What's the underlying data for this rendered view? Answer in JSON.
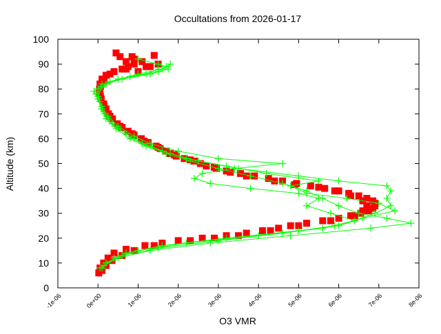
{
  "chart_data": {
    "type": "scatter",
    "title": "Occultations from 2026-01-17",
    "xlabel": "O3 VMR",
    "ylabel": "Altitude (km)",
    "xlim": [
      -1e-06,
      8e-06
    ],
    "ylim": [
      0,
      100
    ],
    "xticks": [
      -1e-06,
      0,
      1e-06,
      2e-06,
      3e-06,
      4e-06,
      5e-06,
      6e-06,
      7e-06,
      8e-06
    ],
    "xtick_labels": [
      "-1e-06",
      "0e+00",
      "1e-06",
      "2e-06",
      "3e-06",
      "4e-06",
      "5e-06",
      "6e-06",
      "7e-06",
      "8e-06"
    ],
    "yticks": [
      0,
      10,
      20,
      30,
      40,
      50,
      60,
      70,
      80,
      90,
      100
    ],
    "ytick_labels": [
      "0",
      "10",
      "20",
      "30",
      "40",
      "50",
      "60",
      "70",
      "80",
      "90",
      "100"
    ],
    "grid": false,
    "legend": "none",
    "point_format": "[O3 VMR, altitude km]",
    "series": [
      {
        "color": "#ff0000",
        "marker": "square",
        "lines": false,
        "points": [
          [
            2e-08,
            6
          ],
          [
            5e-08,
            8
          ],
          [
            1.4e-07,
            10
          ],
          [
            2.5e-07,
            12
          ],
          [
            4e-07,
            14
          ],
          [
            7e-07,
            15.5
          ],
          [
            1.17e-06,
            17
          ],
          [
            1.6e-06,
            18
          ],
          [
            2e-06,
            19
          ],
          [
            2.6e-06,
            20
          ],
          [
            3.2e-06,
            21
          ],
          [
            3.7e-06,
            22
          ],
          [
            4.1e-06,
            23
          ],
          [
            4.5e-06,
            24
          ],
          [
            4.8e-06,
            25
          ],
          [
            5.2e-06,
            26
          ],
          [
            5.6e-06,
            27
          ],
          [
            6e-06,
            28
          ],
          [
            6.3e-06,
            29
          ],
          [
            6.55e-06,
            30
          ],
          [
            6.75e-06,
            31
          ],
          [
            6.85e-06,
            32
          ],
          [
            6.9e-06,
            33
          ],
          [
            6.9e-06,
            34
          ],
          [
            6.85e-06,
            35
          ],
          [
            6.7e-06,
            36
          ],
          [
            6.5e-06,
            37
          ],
          [
            6.25e-06,
            38
          ],
          [
            6e-06,
            39
          ],
          [
            5.65e-06,
            40
          ],
          [
            5.3e-06,
            41
          ],
          [
            4.95e-06,
            42
          ],
          [
            4.6e-06,
            43
          ],
          [
            4.25e-06,
            44
          ],
          [
            3.9e-06,
            45
          ],
          [
            3.55e-06,
            46
          ],
          [
            3.2e-06,
            47
          ],
          [
            2.95e-06,
            48
          ],
          [
            2.7e-06,
            49
          ],
          [
            2.55e-06,
            50
          ],
          [
            2.4e-06,
            51
          ],
          [
            2.15e-06,
            52
          ],
          [
            1.95e-06,
            53
          ],
          [
            1.8e-06,
            54
          ],
          [
            1.7e-06,
            55
          ],
          [
            1.55e-06,
            56
          ],
          [
            1.45e-06,
            57
          ],
          [
            1.25e-06,
            58.5
          ],
          [
            1.08e-06,
            60
          ],
          [
            9e-07,
            61.5
          ],
          [
            7.5e-07,
            63
          ],
          [
            6e-07,
            64.5
          ],
          [
            4.8e-07,
            66
          ],
          [
            3.6e-07,
            68
          ],
          [
            2.6e-07,
            70
          ],
          [
            2e-07,
            72
          ],
          [
            1.4e-07,
            74
          ],
          [
            8e-08,
            76
          ],
          [
            5e-08,
            78
          ],
          [
            4e-08,
            80
          ],
          [
            5e-08,
            82
          ],
          [
            1e-07,
            84
          ],
          [
            2e-07,
            85.5
          ],
          [
            4e-07,
            87
          ],
          [
            6e-07,
            88
          ],
          [
            7.5e-07,
            89
          ],
          [
            9e-07,
            90
          ],
          [
            1.1e-06,
            91
          ],
          [
            9e-07,
            92
          ],
          [
            5.5e-07,
            93
          ],
          [
            4.5e-07,
            94.5
          ],
          [
            1.4e-06,
            93.5
          ],
          [
            1.2e-06,
            89
          ],
          [
            1e-06,
            87
          ]
        ]
      },
      {
        "color": "#ff0000",
        "marker": "square",
        "lines": false,
        "points": [
          [
            1e-07,
            7
          ],
          [
            2e-07,
            9
          ],
          [
            3.5e-07,
            11
          ],
          [
            6e-07,
            13
          ],
          [
            9e-07,
            15
          ],
          [
            1.4e-06,
            17
          ],
          [
            2.3e-06,
            19
          ],
          [
            2.9e-06,
            20
          ],
          [
            3.5e-06,
            21
          ],
          [
            4.3e-06,
            23
          ],
          [
            5e-06,
            25
          ],
          [
            5.8e-06,
            27
          ],
          [
            6.4e-06,
            29
          ],
          [
            6.6e-06,
            31
          ],
          [
            6.7e-06,
            33
          ],
          [
            6.6e-06,
            35
          ],
          [
            6.3e-06,
            37
          ],
          [
            5.9e-06,
            39
          ],
          [
            5.5e-06,
            40.5
          ],
          [
            4.9e-06,
            41.5
          ],
          [
            4.4e-06,
            43
          ],
          [
            3.7e-06,
            45
          ],
          [
            3.3e-06,
            46.5
          ],
          [
            2.9e-06,
            48.5
          ],
          [
            2.3e-06,
            51.5
          ],
          [
            1.9e-06,
            53.5
          ],
          [
            1.5e-06,
            56.5
          ],
          [
            1.15e-06,
            59
          ],
          [
            8.5e-07,
            62
          ],
          [
            5.5e-07,
            65
          ],
          [
            3e-07,
            69
          ],
          [
            1.5e-07,
            73
          ],
          [
            6e-08,
            77
          ],
          [
            6e-08,
            81
          ],
          [
            1.5e-07,
            83
          ],
          [
            3e-07,
            86
          ],
          [
            7e-07,
            88
          ],
          [
            1.3e-06,
            89
          ],
          [
            1.5e-06,
            90
          ],
          [
            7e-07,
            91
          ],
          [
            8.5e-07,
            93
          ]
        ]
      },
      {
        "color": "#00ff00",
        "marker": "plus",
        "lines": true,
        "points": [
          [
            5e-08,
            8
          ],
          [
            5e-07,
            12
          ],
          [
            1.3e-06,
            15
          ],
          [
            2.8e-06,
            18
          ],
          [
            4.8e-06,
            21
          ],
          [
            6.8e-06,
            24
          ],
          [
            7.8e-06,
            26
          ],
          [
            7.2e-06,
            28
          ],
          [
            6.5e-06,
            30
          ],
          [
            6e-06,
            33
          ],
          [
            5.6e-06,
            36
          ],
          [
            5.2e-06,
            39
          ],
          [
            4.6e-06,
            42
          ],
          [
            3.8e-06,
            45
          ],
          [
            3e-06,
            48
          ],
          [
            2.3e-06,
            51
          ],
          [
            1.7e-06,
            54
          ],
          [
            1.2e-06,
            57
          ],
          [
            8e-07,
            60
          ],
          [
            4.5e-07,
            64
          ],
          [
            2e-07,
            68
          ],
          [
            8e-08,
            72
          ],
          [
            0.0,
            76
          ],
          [
            -1e-07,
            79
          ],
          [
            1e-07,
            82
          ],
          [
            8e-07,
            85
          ],
          [
            1.5e-06,
            87
          ],
          [
            1.7e-06,
            89
          ],
          [
            1.5e-06,
            90
          ],
          [
            1e-06,
            92
          ]
        ]
      },
      {
        "color": "#00ff00",
        "marker": "plus",
        "lines": true,
        "points": [
          [
            1e-07,
            8
          ],
          [
            4e-07,
            12
          ],
          [
            1e-06,
            15
          ],
          [
            2.2e-06,
            18
          ],
          [
            4e-06,
            21
          ],
          [
            5.6e-06,
            24
          ],
          [
            6.4e-06,
            27
          ],
          [
            6.9e-06,
            30
          ],
          [
            7.3e-06,
            33
          ],
          [
            7.2e-06,
            36
          ],
          [
            7.3e-06,
            39
          ],
          [
            7.2e-06,
            41
          ],
          [
            6e-06,
            43
          ],
          [
            5e-06,
            45
          ],
          [
            3.5e-06,
            48
          ],
          [
            2.5e-06,
            51
          ],
          [
            1.8e-06,
            54
          ],
          [
            1.3e-06,
            57
          ],
          [
            9e-07,
            60
          ],
          [
            5e-07,
            64
          ],
          [
            2.5e-07,
            68
          ],
          [
            1e-07,
            72
          ],
          [
            2e-08,
            76
          ],
          [
            0.0,
            80
          ],
          [
            3e-07,
            83
          ],
          [
            1e-06,
            86
          ],
          [
            1.6e-06,
            88
          ],
          [
            1.8e-06,
            90
          ]
        ]
      },
      {
        "color": "#00ff00",
        "marker": "plus",
        "lines": true,
        "points": [
          [
            2e-07,
            10
          ],
          [
            7e-07,
            14
          ],
          [
            1.6e-06,
            17
          ],
          [
            3.2e-06,
            20
          ],
          [
            5e-06,
            23
          ],
          [
            6e-06,
            25
          ],
          [
            6.4e-06,
            27
          ],
          [
            5.8e-06,
            30
          ],
          [
            5.2e-06,
            33
          ],
          [
            5.5e-06,
            36
          ],
          [
            5e-06,
            38
          ],
          [
            3.8e-06,
            40
          ],
          [
            2.8e-06,
            42
          ],
          [
            2.4e-06,
            44
          ],
          [
            2.6e-06,
            46
          ],
          [
            3.4e-06,
            48
          ],
          [
            4.6e-06,
            50
          ],
          [
            3e-06,
            52
          ],
          [
            2e-06,
            55
          ],
          [
            1.3e-06,
            58
          ],
          [
            9e-07,
            61
          ],
          [
            5e-07,
            65
          ],
          [
            2.5e-07,
            69
          ],
          [
            1e-07,
            73
          ],
          [
            0.0,
            77
          ],
          [
            1e-07,
            81
          ],
          [
            5e-07,
            84
          ],
          [
            1.2e-06,
            86
          ],
          [
            1.5e-06,
            88
          ]
        ]
      },
      {
        "color": "#00ff00",
        "marker": "plus",
        "lines": true,
        "points": [
          [
            1.5e-07,
            9
          ],
          [
            6e-07,
            13
          ],
          [
            1.5e-06,
            16
          ],
          [
            3e-06,
            19
          ],
          [
            4.6e-06,
            22
          ],
          [
            5.9e-06,
            25
          ],
          [
            6.6e-06,
            28
          ],
          [
            7.4e-06,
            31
          ],
          [
            7e-06,
            34
          ],
          [
            6.2e-06,
            36
          ],
          [
            5.2e-06,
            38
          ],
          [
            4.8e-06,
            41
          ],
          [
            5.5e-06,
            43
          ],
          [
            4.2e-06,
            46
          ],
          [
            3.2e-06,
            49
          ],
          [
            2.2e-06,
            52
          ],
          [
            1.6e-06,
            55
          ],
          [
            1.1e-06,
            58
          ],
          [
            7e-07,
            62
          ],
          [
            3.5e-07,
            66
          ],
          [
            1.5e-07,
            70
          ],
          [
            4e-08,
            75
          ],
          [
            -5e-08,
            78
          ],
          [
            2e-07,
            82
          ],
          [
            6e-07,
            84
          ],
          [
            1.3e-06,
            86
          ],
          [
            1.75e-06,
            88
          ]
        ]
      }
    ]
  }
}
